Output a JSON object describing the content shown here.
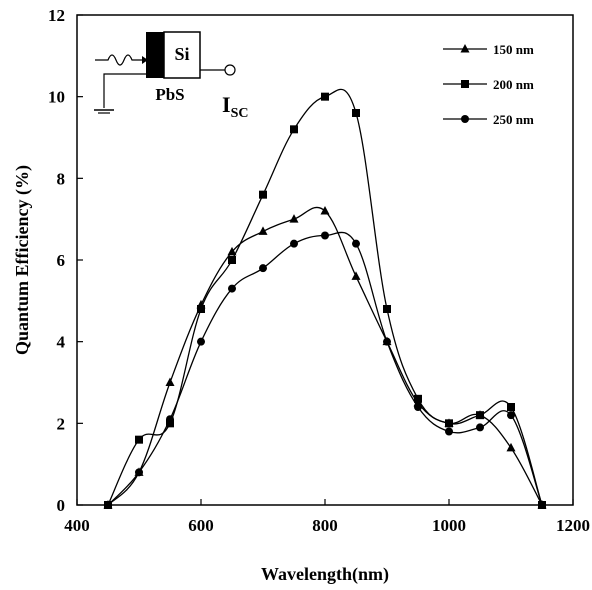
{
  "chart_data": {
    "type": "line",
    "xlabel": "Wavelength(nm)",
    "ylabel": "Quantum Efficiency (%)",
    "xlim": [
      400,
      1200
    ],
    "ylim": [
      0,
      12
    ],
    "xticks": [
      400,
      600,
      800,
      1000,
      1200
    ],
    "yticks": [
      0,
      2,
      4,
      6,
      8,
      10,
      12
    ],
    "grid": false,
    "legend_position": "top-right",
    "series": [
      {
        "name": "150 nm",
        "marker": "triangle",
        "x": [
          450,
          500,
          550,
          600,
          650,
          700,
          750,
          800,
          850,
          900,
          950,
          1000,
          1050,
          1100,
          1150
        ],
        "y": [
          0,
          0.8,
          3.0,
          4.9,
          6.2,
          6.7,
          7.0,
          7.2,
          5.6,
          4.0,
          2.5,
          2.0,
          2.2,
          1.4,
          0
        ]
      },
      {
        "name": "200 nm",
        "marker": "square",
        "x": [
          450,
          500,
          550,
          600,
          650,
          700,
          750,
          800,
          850,
          900,
          950,
          1000,
          1050,
          1100,
          1150
        ],
        "y": [
          0,
          1.6,
          2.0,
          4.8,
          6.0,
          7.6,
          9.2,
          10.0,
          9.6,
          4.8,
          2.6,
          2.0,
          2.2,
          2.4,
          0
        ]
      },
      {
        "name": "250 nm",
        "marker": "circle",
        "x": [
          450,
          500,
          550,
          600,
          650,
          700,
          750,
          800,
          850,
          900,
          950,
          1000,
          1050,
          1100,
          1150
        ],
        "y": [
          0,
          0.8,
          2.1,
          4.0,
          5.3,
          5.8,
          6.4,
          6.6,
          6.4,
          4.0,
          2.4,
          1.8,
          1.9,
          2.2,
          0
        ]
      }
    ],
    "inset": {
      "layer_top": "Si",
      "layer_bottom": "PbS",
      "current_label": "I",
      "current_subscript": "SC"
    }
  }
}
